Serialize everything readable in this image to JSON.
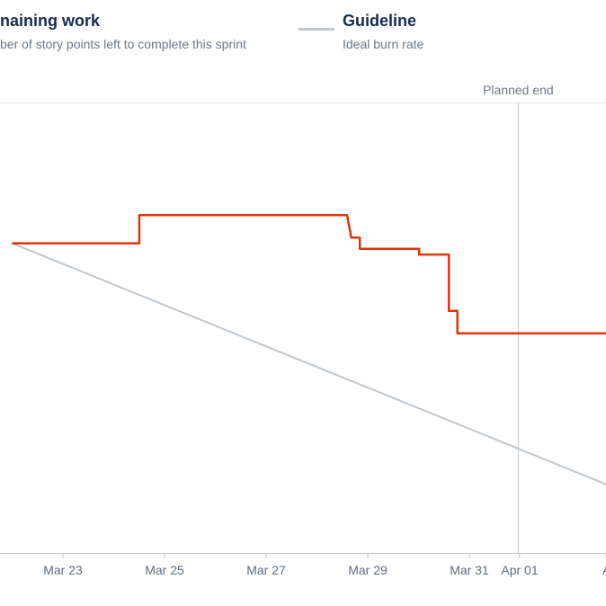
{
  "legend": {
    "remaining": {
      "title": "naining work",
      "subtitle": "ber of story points left to complete this sprint",
      "color": "#de350b"
    },
    "guideline": {
      "title": "Guideline",
      "subtitle": "Ideal burn rate",
      "color": "#c1c7d0"
    }
  },
  "planned_end": {
    "label": "Planned end",
    "date": "2024-04-01"
  },
  "chart_data": {
    "type": "line",
    "x_type": "date",
    "x_ticks": [
      "Mar 23",
      "Mar 25",
      "Mar 27",
      "Mar 29",
      "Mar 31",
      "Apr 01",
      "A"
    ],
    "xlim": [
      "2024-03-22",
      "2024-04-03"
    ],
    "ylim": [
      0,
      24
    ],
    "grid": false,
    "series": [
      {
        "name": "Remaining work",
        "color": "#de350b",
        "step": true,
        "points": [
          [
            "2024-03-22",
            16.5
          ],
          [
            "2024-03-24 12:00",
            16.5
          ],
          [
            "2024-03-24 12:00",
            18
          ],
          [
            "2024-03-28 14:00",
            18
          ],
          [
            "2024-03-28 16:00",
            16.8
          ],
          [
            "2024-03-28 20:00",
            16.8
          ],
          [
            "2024-03-28 20:00",
            16.2
          ],
          [
            "2024-03-30 00:00",
            16.2
          ],
          [
            "2024-03-30 00:00",
            15.9
          ],
          [
            "2024-03-30 14:00",
            15.9
          ],
          [
            "2024-03-30 14:00",
            12.9
          ],
          [
            "2024-03-30 18:00",
            12.9
          ],
          [
            "2024-03-30 18:00",
            11.7
          ],
          [
            "2024-04-03",
            11.7
          ]
        ]
      },
      {
        "name": "Guideline",
        "color": "#c1c7d0",
        "step": false,
        "points": [
          [
            "2024-03-22",
            16.5
          ],
          [
            "2024-04-03",
            3.3
          ]
        ]
      }
    ]
  }
}
